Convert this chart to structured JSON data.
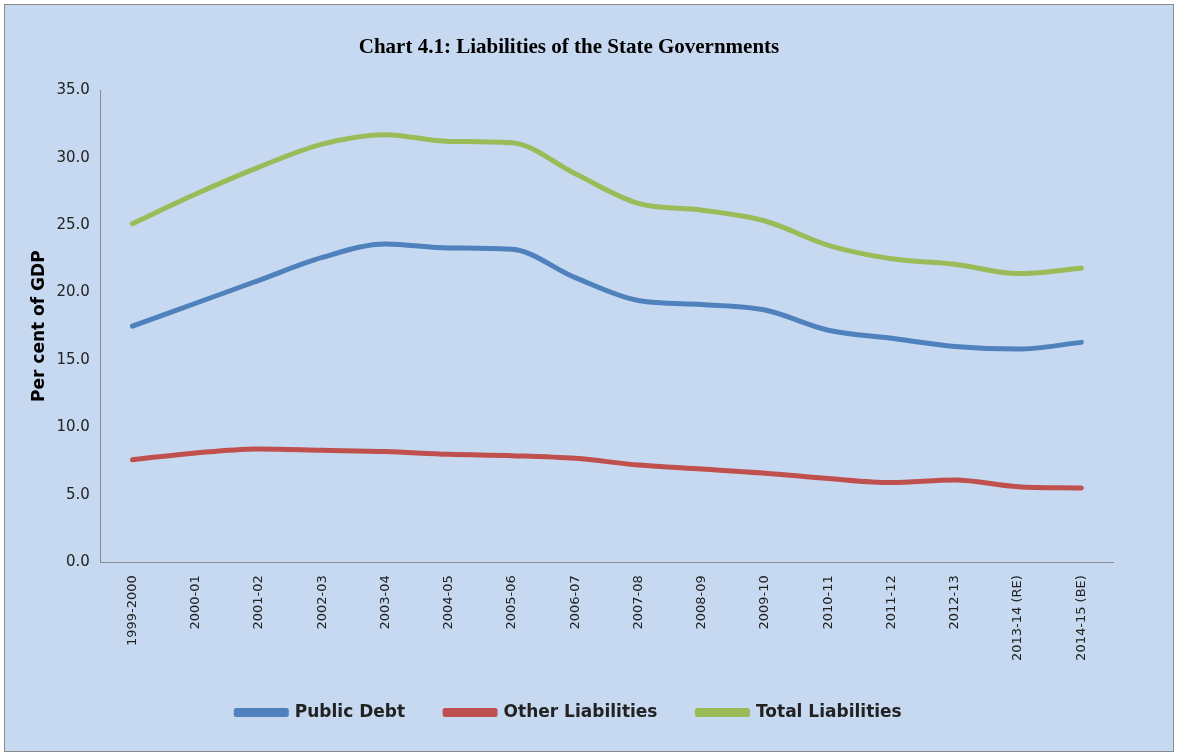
{
  "chart_data": {
    "type": "line",
    "title": "Chart 4.1: Liabilities of the State Governments",
    "ylabel": "Per cent of GDP",
    "categories": [
      "1999-2000",
      "2000-01",
      "2001-02",
      "2002-03",
      "2003-04",
      "2004-05",
      "2005-06",
      "2006-07",
      "2007-08",
      "2008-09",
      "2009-10",
      "2010-11",
      "2011-12",
      "2012-13",
      "2013-14 (RE)",
      "2014-15 (BE)"
    ],
    "series": [
      {
        "name": "Public Debt",
        "color": "#4f81bd",
        "values": [
          17.5,
          19.2,
          20.9,
          22.6,
          23.6,
          23.3,
          23.2,
          21.1,
          19.4,
          19.1,
          18.7,
          17.2,
          16.6,
          16.0,
          15.8,
          16.3
        ]
      },
      {
        "name": "Other Liabilities",
        "color": "#c0504d",
        "values": [
          7.6,
          8.1,
          8.4,
          8.3,
          8.2,
          8.0,
          7.9,
          7.7,
          7.2,
          6.9,
          6.6,
          6.2,
          5.9,
          6.1,
          5.6,
          5.5
        ]
      },
      {
        "name": "Total Liabilities",
        "color": "#9bbb59",
        "values": [
          25.1,
          27.3,
          29.3,
          31.0,
          31.7,
          31.2,
          31.1,
          28.8,
          26.6,
          26.1,
          25.3,
          23.5,
          22.5,
          22.1,
          21.4,
          21.8
        ]
      }
    ],
    "ylim": [
      0,
      35
    ],
    "yticks": [
      {
        "value": 0,
        "label": "0.0"
      },
      {
        "value": 5,
        "label": "5.0"
      },
      {
        "value": 10,
        "label": "10.0"
      },
      {
        "value": 15,
        "label": "15.0"
      },
      {
        "value": 20,
        "label": "20.0"
      },
      {
        "value": 25,
        "label": "25.0"
      },
      {
        "value": 30,
        "label": "30.0"
      },
      {
        "value": 35,
        "label": "35.0"
      }
    ],
    "grid": false,
    "legend": "bottom",
    "marker": "none",
    "line_style": "solid"
  }
}
